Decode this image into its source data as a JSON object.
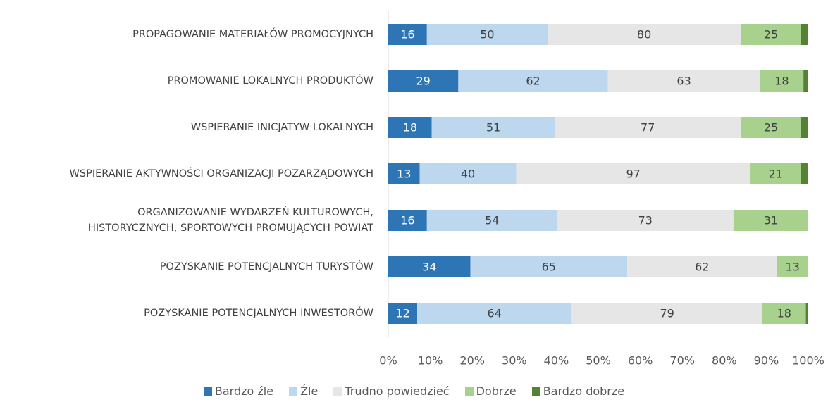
{
  "chart_data": {
    "type": "stacked-bar-100",
    "categories": [
      "PROPAGOWANIE MATERIAŁÓW PROMOCYJNYCH",
      "PROMOWANIE LOKALNYCH PRODUKTÓW",
      "WSPIERANIE INICJATYW LOKALNYCH",
      "WSPIERANIE AKTYWNOŚCI ORGANIZACJI POZARZĄDOWYCH",
      "ORGANIZOWANIE WYDARZEŃ KULTUROWYCH,\nHISTORYCZNYCH, SPORTOWYCH PROMUJĄCYCH POWIAT",
      "POZYSKANIE POTENCJALNYCH TURYSTÓW",
      "POZYSKANIE POTENCJALNYCH INWESTORÓW"
    ],
    "series": [
      {
        "name": "Bardzo źle",
        "color": "#2e75b6",
        "label_color": "#ffffff",
        "values": [
          16,
          29,
          18,
          13,
          16,
          34,
          12
        ]
      },
      {
        "name": "Źle",
        "color": "#bdd7ee",
        "label_color": "#404040",
        "values": [
          50,
          62,
          51,
          40,
          54,
          65,
          64
        ]
      },
      {
        "name": "Trudno powiedzieć",
        "color": "#e7e6e6",
        "label_color": "#404040",
        "values": [
          80,
          63,
          77,
          97,
          73,
          62,
          79
        ]
      },
      {
        "name": "Dobrze",
        "color": "#a9d18e",
        "label_color": "#404040",
        "values": [
          25,
          18,
          25,
          21,
          31,
          13,
          18
        ]
      },
      {
        "name": "Bardzo dobrze",
        "color": "#548235",
        "labels": false,
        "values": [
          3,
          2,
          3,
          3,
          0,
          0,
          1
        ]
      }
    ],
    "xlim": [
      0,
      100
    ],
    "xticks": [
      {
        "value": 0,
        "label": "0%"
      },
      {
        "value": 10,
        "label": "10%"
      },
      {
        "value": 20,
        "label": "20%"
      },
      {
        "value": 30,
        "label": "30%"
      },
      {
        "value": 40,
        "label": "40%"
      },
      {
        "value": 50,
        "label": "50%"
      },
      {
        "value": 60,
        "label": "60%"
      },
      {
        "value": 70,
        "label": "70%"
      },
      {
        "value": 80,
        "label": "80%"
      },
      {
        "value": 90,
        "label": "90%"
      },
      {
        "value": 100,
        "label": "100%"
      }
    ],
    "legend": "bottom"
  }
}
